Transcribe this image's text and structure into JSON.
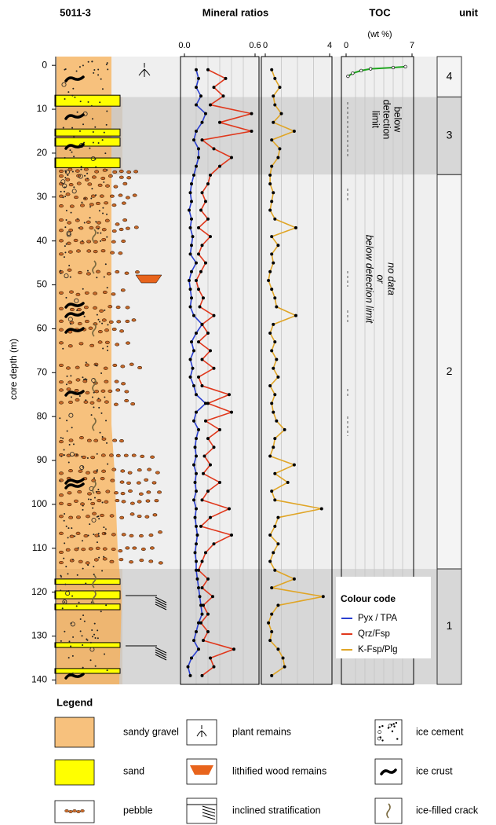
{
  "chart_data": [
    {
      "type": "line",
      "title": "Mineral ratios",
      "ylabel": "core depth (m)",
      "ylim": [
        -2,
        141
      ],
      "yticks": [
        0,
        10,
        20,
        30,
        40,
        50,
        60,
        70,
        80,
        90,
        100,
        110,
        120,
        130,
        140
      ],
      "y_inverted": true,
      "xlim": [
        0,
        0.6
      ],
      "xticks": [
        {
          "value": 0,
          "label": "0.0"
        },
        0.6
      ],
      "xgrid": [
        0.1,
        0.2,
        0.3,
        0.4,
        0.5
      ],
      "marker": "filled",
      "legend_title": "Colour code",
      "y": [
        1,
        3,
        5,
        7,
        9,
        11,
        13,
        15,
        17,
        19,
        21,
        23,
        25,
        27,
        29,
        31,
        33,
        35,
        37,
        39,
        41,
        43,
        45,
        47,
        49,
        51,
        53,
        55,
        57,
        59,
        61,
        63,
        65,
        67,
        69,
        71,
        73,
        75,
        77,
        79,
        81,
        83,
        85,
        87,
        89,
        91,
        93,
        95,
        97,
        99,
        101,
        103,
        105,
        107,
        109,
        111,
        113,
        115,
        117,
        119,
        121,
        123,
        125,
        127,
        129,
        131,
        133,
        135,
        137,
        139
      ],
      "series": [
        {
          "name": "Pyx / TPA",
          "color": "#2a3fd0",
          "values": [
            0.1,
            0.12,
            0.1,
            0.14,
            0.1,
            0.18,
            0.15,
            0.1,
            0.08,
            0.12,
            0.12,
            0.1,
            0.08,
            0.06,
            0.05,
            0.06,
            0.04,
            0.06,
            0.05,
            0.07,
            0.06,
            0.05,
            0.1,
            0.06,
            0.04,
            0.05,
            0.06,
            0.05,
            0.08,
            0.15,
            0.1,
            0.06,
            0.08,
            0.05,
            0.07,
            0.05,
            0.08,
            0.1,
            0.18,
            0.1,
            0.08,
            0.12,
            0.1,
            0.09,
            0.1,
            0.08,
            0.1,
            0.09,
            0.1,
            0.08,
            0.1,
            0.09,
            0.1,
            0.11,
            0.1,
            0.09,
            0.1,
            0.1,
            0.11,
            0.12,
            0.13,
            0.14,
            0.15,
            0.12,
            0.1,
            0.08,
            0.12,
            0.06,
            0.03,
            0.05
          ]
        },
        {
          "name": "Qrz/Fsp",
          "color": "#e0381c",
          "values": [
            0.2,
            0.35,
            0.25,
            0.33,
            0.22,
            0.57,
            0.3,
            0.57,
            0.15,
            0.25,
            0.4,
            0.3,
            0.22,
            0.2,
            0.15,
            0.18,
            0.14,
            0.2,
            0.12,
            0.22,
            0.15,
            0.12,
            0.18,
            0.14,
            0.1,
            0.12,
            0.16,
            0.13,
            0.25,
            0.15,
            0.2,
            0.12,
            0.22,
            0.15,
            0.25,
            0.12,
            0.15,
            0.38,
            0.2,
            0.4,
            0.18,
            0.3,
            0.2,
            0.25,
            0.17,
            0.22,
            0.16,
            0.3,
            0.2,
            0.15,
            0.38,
            0.22,
            0.14,
            0.4,
            0.25,
            0.18,
            0.15,
            0.12,
            0.2,
            0.15,
            0.24,
            0.16,
            0.2,
            0.14,
            0.2,
            0.16,
            0.42,
            0.22,
            0.25,
            0.15
          ]
        }
      ]
    },
    {
      "type": "line",
      "xlim": [
        0,
        4
      ],
      "xticks": [
        0,
        4
      ],
      "xgrid": [
        1,
        2,
        3
      ],
      "marker": "filled",
      "y": [
        1,
        3,
        5,
        7,
        9,
        11,
        13,
        15,
        17,
        19,
        21,
        23,
        25,
        27,
        29,
        31,
        33,
        35,
        37,
        39,
        41,
        43,
        45,
        47,
        49,
        51,
        53,
        55,
        57,
        59,
        61,
        63,
        65,
        67,
        69,
        71,
        73,
        75,
        77,
        79,
        81,
        83,
        85,
        87,
        89,
        91,
        93,
        95,
        97,
        99,
        101,
        103,
        105,
        107,
        109,
        111,
        113,
        115,
        117,
        119,
        121,
        123,
        125,
        127,
        129,
        131,
        133,
        135,
        137,
        139
      ],
      "series": [
        {
          "name": "K-Fsp/Plg",
          "color": "#e0a526",
          "values": [
            0.4,
            0.6,
            0.9,
            0.5,
            0.6,
            1.0,
            0.5,
            1.8,
            0.4,
            0.9,
            0.8,
            0.4,
            0.3,
            0.3,
            0.5,
            0.4,
            0.3,
            0.6,
            1.9,
            0.4,
            0.8,
            0.4,
            0.5,
            0.3,
            0.2,
            0.4,
            0.6,
            0.7,
            1.9,
            0.5,
            0.3,
            0.6,
            0.4,
            0.7,
            0.5,
            0.8,
            0.3,
            0.6,
            0.4,
            0.5,
            0.7,
            1.2,
            0.6,
            0.5,
            0.3,
            1.8,
            0.6,
            1.4,
            0.4,
            0.6,
            3.5,
            0.8,
            0.6,
            0.3,
            0.8,
            0.5,
            0.3,
            0.6,
            1.8,
            0.4,
            3.6,
            0.8,
            0.4,
            0.2,
            0.4,
            0.3,
            0.8,
            1.1,
            1.2,
            0.4
          ]
        }
      ]
    },
    {
      "type": "line",
      "title": "TOC",
      "subtitle": "(wt %)",
      "xlim": [
        0,
        7
      ],
      "xticks": [
        0,
        7
      ],
      "xgrid": [
        1,
        2,
        3,
        4,
        5,
        6
      ],
      "marker": "open",
      "y": [
        0.3,
        0.5,
        0.8,
        1.2,
        1.8,
        2.5
      ],
      "series": [
        {
          "color": "#1fa51f",
          "values": [
            6.3,
            5.0,
            2.6,
            1.6,
            0.7,
            0.2
          ]
        }
      ],
      "annotations": [
        {
          "lines": [
            "below",
            "detection",
            "limit"
          ]
        },
        {
          "lines": [
            "no data",
            "or",
            "below detection limit"
          ]
        }
      ]
    }
  ],
  "lithology": {
    "title": "5011-3",
    "sand_beds": [
      [
        6.8,
        9.3
      ],
      [
        14.5,
        16.1
      ],
      [
        16.5,
        18.4
      ],
      [
        21.1,
        23.3
      ],
      [
        117,
        118.2
      ],
      [
        119.7,
        121.5
      ],
      [
        122.7,
        124
      ],
      [
        131.5,
        132.6
      ],
      [
        137.4,
        138.5
      ]
    ]
  },
  "units": {
    "title": "unit",
    "items": [
      {
        "label": "4",
        "top": -2,
        "bottom": 7.2,
        "color": "#efefef"
      },
      {
        "label": "3",
        "top": 7.2,
        "bottom": 24.9,
        "color": "#d7d7d7"
      },
      {
        "label": "2",
        "top": 24.9,
        "bottom": 114.7,
        "color": "#efefef"
      },
      {
        "label": "1",
        "top": 114.7,
        "bottom": 141,
        "color": "#d7d7d7"
      }
    ]
  },
  "legend": {
    "title": "Legend",
    "items": [
      "sandy gravel",
      "sand",
      "pebble",
      "plant remains",
      "lithified wood remains",
      "inclined stratification",
      "ice cement",
      "ice crust",
      "ice-filled crack"
    ]
  }
}
